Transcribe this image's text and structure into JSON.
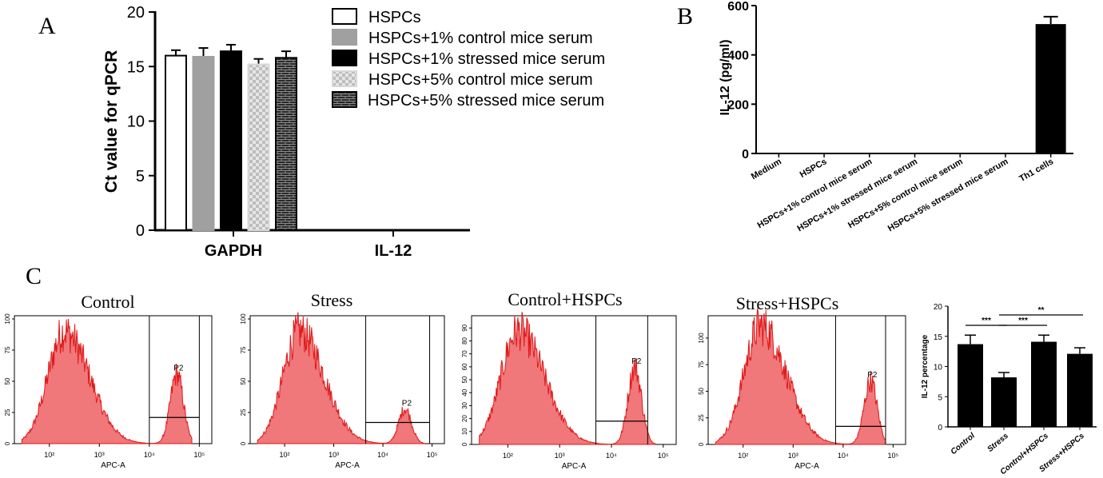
{
  "panel_labels": {
    "a": "A",
    "b": "B",
    "c": "C"
  },
  "chart_data": [
    {
      "panel": "A",
      "type": "bar",
      "ylabel": "Ct value for qPCR",
      "ylim": [
        0,
        20
      ],
      "yticks": [
        0,
        5,
        10,
        15,
        20
      ],
      "categories": [
        "GAPDH",
        "IL-12"
      ],
      "legend_position": "top-right",
      "series": [
        {
          "name": "HSPCs",
          "values": [
            16.0,
            null
          ],
          "errors": [
            0.5,
            null
          ],
          "pattern": "white"
        },
        {
          "name": "HSPCs+1% control mice serum",
          "values": [
            15.9,
            null
          ],
          "errors": [
            0.8,
            null
          ],
          "pattern": "gray"
        },
        {
          "name": "HSPCs+1% stressed mice serum",
          "values": [
            16.4,
            null
          ],
          "errors": [
            0.6,
            null
          ],
          "pattern": "black"
        },
        {
          "name": "HSPCs+5% control mice serum",
          "values": [
            15.2,
            null
          ],
          "errors": [
            0.5,
            null
          ],
          "pattern": "checker"
        },
        {
          "name": "HSPCs+5% stressed mice serum",
          "values": [
            15.8,
            null
          ],
          "errors": [
            0.6,
            null
          ],
          "pattern": "brick"
        }
      ]
    },
    {
      "panel": "B",
      "type": "bar",
      "ylabel": "IL-12 (pg/ml)",
      "ylim": [
        0,
        600
      ],
      "yticks": [
        0,
        200,
        400,
        600
      ],
      "categories": [
        "Medium",
        "HSPCs",
        "HSPCs+1% control mice serum",
        "HSPCs+1% stressed mice serum",
        "HSPCs+5% control mice serum",
        "HSPCs+5% stressed mice serum",
        "Th1 cells"
      ],
      "values": [
        0,
        0,
        0,
        0,
        0,
        0,
        525
      ],
      "errors": [
        0,
        0,
        0,
        0,
        0,
        0,
        30
      ]
    },
    {
      "panel": "C",
      "type": "area",
      "subtype": "flow-cytometry-histograms",
      "xlabel": "APC-A",
      "gate_label": "P2",
      "xtick_labels": [
        "10²",
        "10³",
        "10⁴",
        "10⁵"
      ],
      "histograms": [
        {
          "title": "Control",
          "yticks": [
            "0",
            "25",
            "50",
            "75",
            "100"
          ],
          "ymax": 100,
          "main_peak_log10": 2.3,
          "main_peak_height": 90,
          "p2_peak_log10": 4.55,
          "p2_peak_height": 56,
          "gate_log10": [
            4.0,
            5.0
          ],
          "gate_line_level": 21
        },
        {
          "title": "Stress",
          "yticks": [
            "0",
            "25",
            "50",
            "75",
            "100"
          ],
          "ymax": 100,
          "main_peak_log10": 2.3,
          "main_peak_height": 90,
          "p2_peak_log10": 4.45,
          "p2_peak_height": 28,
          "gate_log10": [
            3.65,
            4.95
          ],
          "gate_line_level": 17
        },
        {
          "title": "Control+HSPCs",
          "yticks": [
            "0",
            "10",
            "20",
            "30",
            "40",
            "50",
            "60",
            "70",
            "80",
            "90"
          ],
          "ymax": 97,
          "main_peak_log10": 2.2,
          "main_peak_height": 88,
          "p2_peak_log10": 4.45,
          "p2_peak_height": 60,
          "gate_log10": [
            3.7,
            4.7
          ],
          "gate_line_level": 18
        },
        {
          "title": "Stress+HSPCs",
          "yticks": [
            "0",
            "25",
            "50",
            "75",
            "100"
          ],
          "ymax": 118,
          "main_peak_log10": 2.35,
          "main_peak_height": 112,
          "p2_peak_log10": 4.55,
          "p2_peak_height": 60,
          "gate_log10": [
            3.85,
            4.85
          ],
          "gate_line_level": 17
        }
      ]
    },
    {
      "panel": "C",
      "type": "bar",
      "ylabel": "IL-12 percentage",
      "ylim": [
        0,
        20
      ],
      "yticks": [
        0,
        5,
        10,
        15,
        20
      ],
      "categories": [
        "Control",
        "Stress",
        "Control+HSPCs",
        "Stress+HSPCs"
      ],
      "values": [
        13.7,
        8.2,
        14.1,
        12.1
      ],
      "errors": [
        1.5,
        0.8,
        1.1,
        1.0
      ],
      "significance": [
        {
          "from": 0,
          "to": 1,
          "label": "***"
        },
        {
          "from": 1,
          "to": 2,
          "label": "***"
        },
        {
          "from": 1,
          "to": 3,
          "label": "**"
        }
      ]
    }
  ]
}
